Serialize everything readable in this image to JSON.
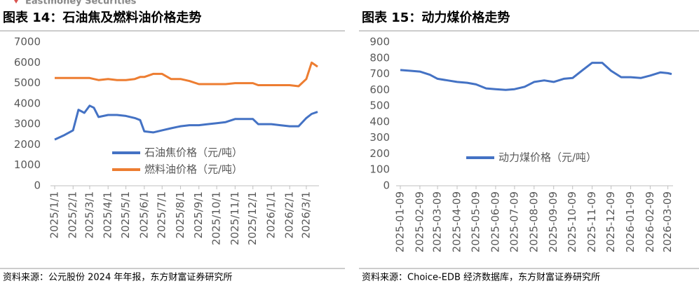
{
  "header": {
    "brand": "Eastmoney Securities"
  },
  "chart_data": [
    {
      "type": "line",
      "title": "图表 14：石油焦及燃料油价格走势",
      "x": [
        "2025/1/1",
        "2025/1/16",
        "2025/2/1",
        "2025/2/10",
        "2025/2/20",
        "2025/3/1",
        "2025/3/8",
        "2025/3/16",
        "2025/4/1",
        "2025/4/16",
        "2025/5/1",
        "2025/5/16",
        "2025/5/25",
        "2025/6/1",
        "2025/6/16",
        "2025/7/1",
        "2025/7/16",
        "2025/8/1",
        "2025/8/16",
        "2025/9/1",
        "2025/9/16",
        "2025/10/1",
        "2025/10/16",
        "2025/11/1",
        "2025/11/16",
        "2025/12/1",
        "2025/12/10",
        "2025/12/16",
        "2026/1/1",
        "2026/1/16",
        "2026/2/1",
        "2026/2/16",
        "2026/3/1",
        "2026/3/10",
        "2026/3/20"
      ],
      "xticks": [
        "2025/1/1",
        "2025/2/1",
        "2025/3/1",
        "2025/4/1",
        "2025/5/1",
        "2025/6/1",
        "2025/7/1",
        "2025/8/1",
        "2025/9/1",
        "2025/10/1",
        "2025/11/1",
        "2025/12/1",
        "2026/1/1",
        "2026/2/1",
        "2026/3/1"
      ],
      "series": [
        {
          "name": "石油焦价格（元/吨）",
          "color": "#4472c4",
          "values": [
            2250,
            2450,
            2700,
            3700,
            3550,
            3900,
            3800,
            3350,
            3450,
            3450,
            3400,
            3300,
            3200,
            2650,
            2600,
            2700,
            2800,
            2900,
            2950,
            2950,
            3000,
            3050,
            3100,
            3250,
            3250,
            3250,
            3000,
            3000,
            3000,
            2950,
            2900,
            2900,
            3300,
            3500,
            3600
          ]
        },
        {
          "name": "燃料油价格（元/吨）",
          "color": "#ed7d31",
          "values": [
            5250,
            5250,
            5250,
            5250,
            5250,
            5250,
            5200,
            5150,
            5200,
            5150,
            5150,
            5200,
            5300,
            5300,
            5450,
            5450,
            5200,
            5200,
            5100,
            4950,
            4950,
            4950,
            4950,
            5000,
            5000,
            5000,
            4900,
            4900,
            4900,
            4900,
            4900,
            4850,
            5200,
            6000,
            5800
          ]
        }
      ],
      "ylim": [
        0,
        7000
      ],
      "yticks": [
        0,
        1000,
        2000,
        3000,
        4000,
        5000,
        6000,
        7000
      ],
      "legend": "center",
      "source": "资料来源：公元股份 2024 年年报，东方财富证券研究所"
    },
    {
      "type": "line",
      "title": "图表 15：动力煤价格走势",
      "x": [
        "2025-01-09",
        "2025-01-25",
        "2025-02-09",
        "2025-02-25",
        "2025-03-09",
        "2025-03-25",
        "2025-04-09",
        "2025-04-25",
        "2025-05-09",
        "2025-05-25",
        "2025-06-09",
        "2025-06-25",
        "2025-07-09",
        "2025-07-25",
        "2025-08-09",
        "2025-08-25",
        "2025-09-09",
        "2025-09-25",
        "2025-10-09",
        "2025-10-25",
        "2025-11-09",
        "2025-11-25",
        "2025-12-09",
        "2025-12-25",
        "2026-01-09",
        "2026-01-25",
        "2026-02-09",
        "2026-02-25",
        "2026-03-09",
        "2026-03-15"
      ],
      "xticks": [
        "2025-01-09",
        "2025-02-09",
        "2025-03-09",
        "2025-04-09",
        "2025-05-09",
        "2025-06-09",
        "2025-07-09",
        "2025-08-09",
        "2025-09-09",
        "2025-10-09",
        "2025-11-09",
        "2025-12-09",
        "2026-01-09",
        "2026-02-09",
        "2026-03-09"
      ],
      "series": [
        {
          "name": "动力煤价格（元/吨）",
          "color": "#4472c4",
          "values": [
            725,
            720,
            715,
            695,
            670,
            660,
            650,
            645,
            635,
            610,
            605,
            600,
            605,
            620,
            650,
            660,
            650,
            670,
            675,
            725,
            770,
            770,
            720,
            680,
            680,
            675,
            690,
            710,
            705,
            700
          ]
        }
      ],
      "ylim": [
        0,
        900
      ],
      "yticks": [
        0,
        100,
        200,
        300,
        400,
        500,
        600,
        700,
        800,
        900
      ],
      "legend": "center",
      "source": "资料来源：Choice-EDB 经济数据库，东方财富证券研究所"
    }
  ]
}
